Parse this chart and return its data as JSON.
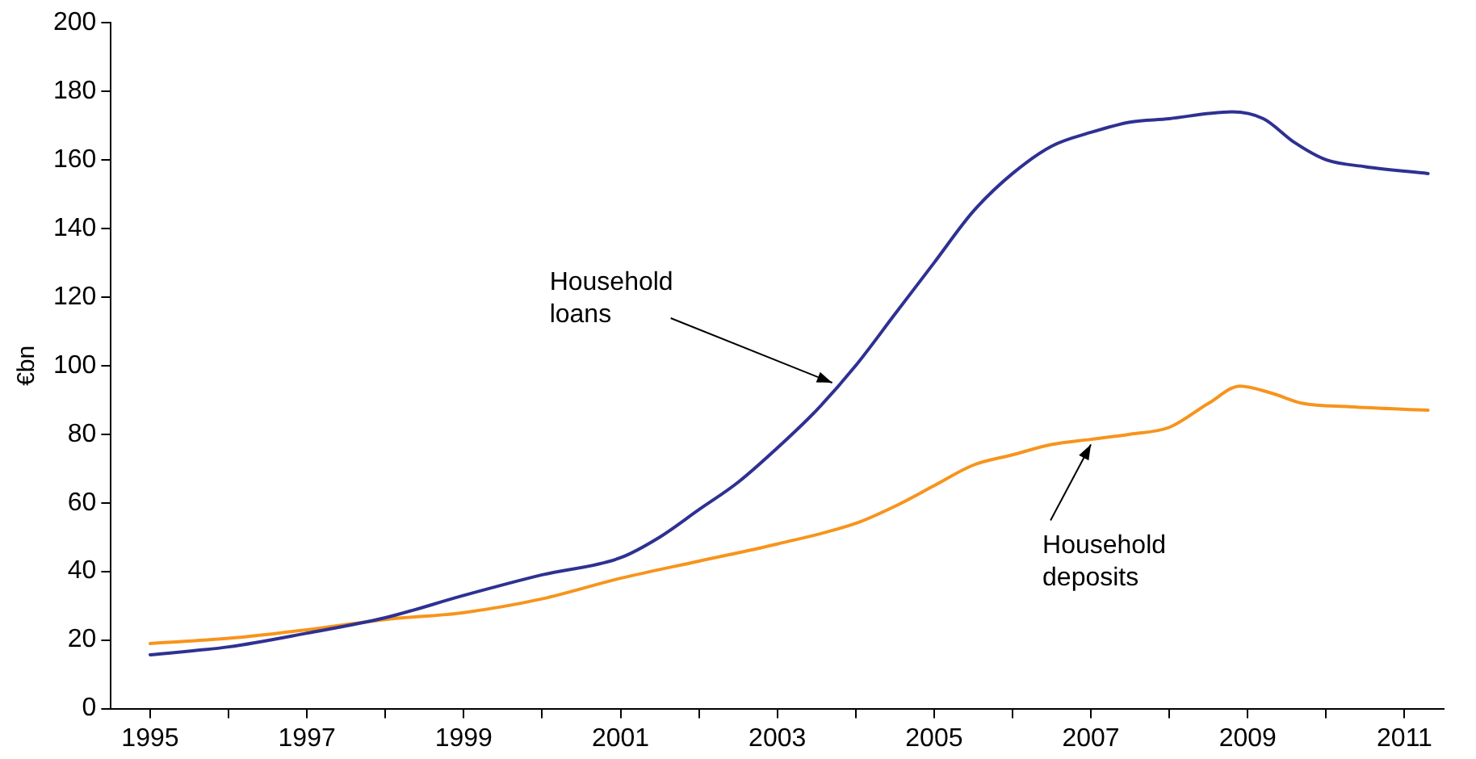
{
  "chart_data": {
    "type": "line",
    "ylabel": "€bn",
    "xlim": [
      1994.5,
      2011.5
    ],
    "ylim": [
      0,
      200
    ],
    "xticks": [
      1995,
      {
        "value": 1996,
        "label": null
      },
      1997,
      {
        "value": 1998,
        "label": null
      },
      1999,
      {
        "value": 2000,
        "label": null
      },
      2001,
      {
        "value": 2002,
        "label": null
      },
      2003,
      {
        "value": 2004,
        "label": null
      },
      2005,
      {
        "value": 2006,
        "label": null
      },
      2007,
      {
        "value": 2008,
        "label": null
      },
      2009,
      {
        "value": 2010,
        "label": null
      },
      2011
    ],
    "yticks": [
      0,
      20,
      40,
      60,
      80,
      100,
      120,
      140,
      160,
      180,
      200
    ],
    "grid": false,
    "legend": false,
    "marker": "none",
    "line_style": "solid",
    "series": [
      {
        "color": "#2e3192",
        "x": [
          1995,
          1996,
          1997,
          1998,
          1999,
          2000,
          2001,
          2001.5,
          2002,
          2002.5,
          2003,
          2003.5,
          2004,
          2004.5,
          2005,
          2005.5,
          2006,
          2006.5,
          2007,
          2007.5,
          2008,
          2008.5,
          2008.8,
          2009.2,
          2009.6,
          2010,
          2010.5,
          2011.3
        ],
        "values": [
          15.7,
          18,
          22,
          26.5,
          33,
          39,
          44,
          50,
          58,
          66,
          76,
          87,
          100,
          115,
          130,
          145,
          156,
          164,
          168,
          171,
          172,
          173.5,
          174,
          172,
          165,
          160,
          158,
          156
        ]
      },
      {
        "color": "#f7941d",
        "x": [
          1995,
          1996,
          1997,
          1998,
          1999,
          2000,
          2001,
          2002,
          2003,
          2004,
          2004.5,
          2005,
          2005.5,
          2006,
          2006.5,
          2007,
          2007.5,
          2008,
          2008.5,
          2008.9,
          2009.3,
          2009.7,
          2010.3,
          2011.3
        ],
        "values": [
          19,
          20.5,
          23,
          26,
          28,
          32,
          38,
          43,
          48,
          54,
          59,
          65,
          71,
          74,
          77,
          78.5,
          80,
          82,
          89,
          94,
          92,
          89,
          88,
          87
        ]
      }
    ],
    "annotations": [
      {
        "text": "Household\nloans",
        "x": 2003.7,
        "y": 95
      },
      {
        "text": "Household\ndeposits",
        "x": 2007,
        "y": 77
      }
    ]
  }
}
